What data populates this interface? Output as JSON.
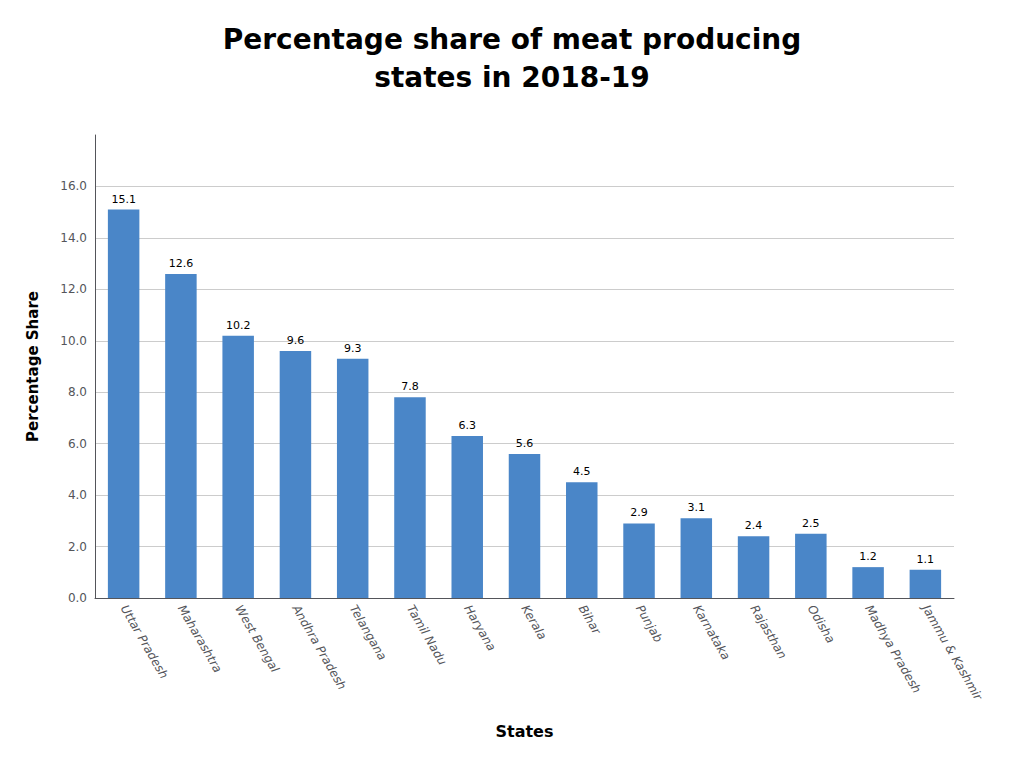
{
  "chart_data": {
    "type": "bar",
    "title": "Percentage share of meat producing\nstates in 2018-19",
    "xlabel": "States",
    "ylabel": "Percentage Share",
    "categories": [
      "Uttar Pradesh",
      "Maharashtra",
      "West Bengal",
      "Andhra Pradesh",
      "Telangana",
      "Tamil Nadu",
      "Haryana",
      "Kerala",
      "Bihar",
      "Punjab",
      "Karnataka",
      "Rajasthan",
      "Odisha",
      "Madhya Pradesh",
      "Jammu & Kashmir"
    ],
    "values": [
      15.1,
      12.6,
      10.2,
      9.6,
      9.3,
      7.8,
      6.3,
      5.6,
      4.5,
      2.9,
      3.1,
      2.4,
      2.5,
      1.2,
      1.1
    ],
    "color": "#4a86c8",
    "ylim": [
      0,
      18
    ],
    "yticks": [
      {
        "value": 0,
        "label": "0.0"
      },
      {
        "value": 2,
        "label": "2.0"
      },
      {
        "value": 4,
        "label": "4.0"
      },
      {
        "value": 6,
        "label": "6.0"
      },
      {
        "value": 8,
        "label": "8.0"
      },
      {
        "value": 10,
        "label": "10.0"
      },
      {
        "value": 12,
        "label": "12.0"
      },
      {
        "value": 14,
        "label": "14.0"
      },
      {
        "value": 16,
        "label": "16.0"
      }
    ],
    "grid": true,
    "data_labels": true
  }
}
